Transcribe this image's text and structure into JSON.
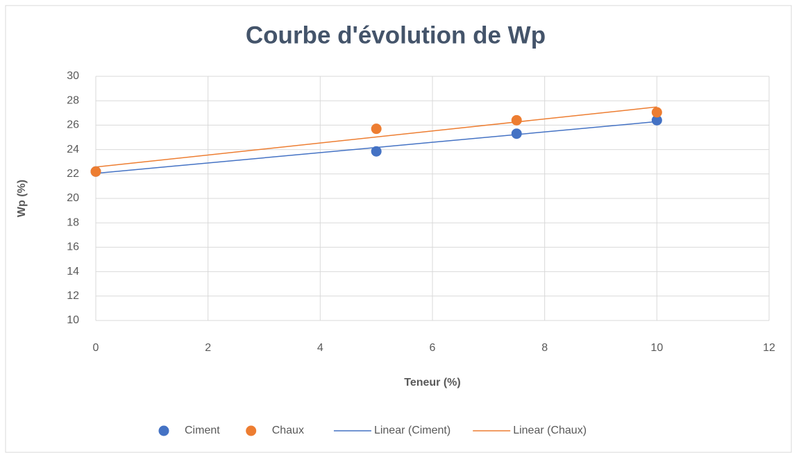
{
  "chart_data": {
    "type": "scatter",
    "title": "Courbe d'évolution de Wp",
    "xlabel": "Teneur (%)",
    "ylabel": "Wp (%)",
    "xlim": [
      0,
      12
    ],
    "xticks": [
      0,
      2,
      4,
      6,
      8,
      10,
      12
    ],
    "ylim": [
      10,
      30
    ],
    "yticks": [
      10,
      12,
      14,
      16,
      18,
      20,
      22,
      24,
      26,
      28,
      30
    ],
    "grid": true,
    "legend": "bottom",
    "series": [
      {
        "name": "Ciment",
        "color": "#4472c4",
        "x": [
          0,
          5,
          7.5,
          10
        ],
        "values": [
          22.2,
          23.85,
          25.3,
          26.4
        ],
        "trendline": "linear",
        "trendline_name": "Linear (Ciment)"
      },
      {
        "name": "Chaux",
        "color": "#ed7d31",
        "x": [
          0,
          5,
          7.5,
          10
        ],
        "values": [
          22.2,
          25.7,
          26.4,
          27.05
        ],
        "trendline": "linear",
        "trendline_name": "Linear (Chaux)"
      }
    ]
  }
}
